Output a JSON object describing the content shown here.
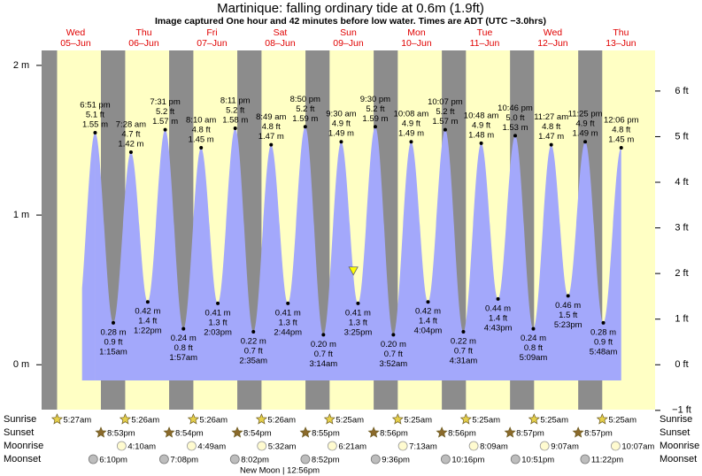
{
  "chart_data": {
    "type": "tide",
    "title": "Martinique: falling  ordinary tide at 0.6m (1.9ft)",
    "subtitle": "Image captured One hour and 42 minutes before low water. Times are ADT (UTC −3.0hrs)",
    "current_height": 0.6,
    "ylim": [
      -0.3,
      2.1
    ],
    "yticks": [
      {
        "value": 0,
        "label": "0 m"
      },
      {
        "value": 1,
        "label": "1 m"
      },
      {
        "value": 2,
        "label": "2 m"
      }
    ],
    "y2lim": [
      -0.984,
      6.89
    ],
    "y2ticks": [
      {
        "value": -1,
        "label": "−1 ft"
      },
      {
        "value": 0,
        "label": "0 ft"
      },
      {
        "value": 1,
        "label": "1 ft"
      },
      {
        "value": 2,
        "label": "2 ft"
      },
      {
        "value": 3,
        "label": "3 ft"
      },
      {
        "value": 4,
        "label": "4 ft"
      },
      {
        "value": 5,
        "label": "5 ft"
      },
      {
        "value": 6,
        "label": "6 ft"
      }
    ],
    "row_labels": [
      "Sunrise",
      "Sunset",
      "Moonrise",
      "Moonset"
    ],
    "moon_phase": "New Moon | 12:56pm",
    "colors": {
      "night": "#8c8c8c",
      "day": "#ffffc4",
      "water": "#a3a8fb"
    },
    "days": [
      {
        "weekday": "Wed",
        "date": "05–Jun",
        "sunrise": "5:27am",
        "sunset": "8:53pm",
        "moonrise": null,
        "moonset": "6:10pm",
        "tides": [
          {
            "time": "6:51 pm",
            "height": 1.55,
            "height_label": "1.55 m",
            "height_ft": "5.1 ft"
          }
        ]
      },
      {
        "weekday": "Thu",
        "date": "06–Jun",
        "sunrise": "5:26am",
        "sunset": "8:54pm",
        "moonrise": "4:10am",
        "moonset": "7:08pm",
        "tides": [
          {
            "time": "1:15am",
            "height": 0.28,
            "height_label": "0.28 m",
            "height_ft": "0.9 ft"
          },
          {
            "time": "7:28 am",
            "height": 1.42,
            "height_label": "1.42 m",
            "height_ft": "4.7 ft"
          },
          {
            "time": "1:22pm",
            "height": 0.42,
            "height_label": "0.42 m",
            "height_ft": "1.4 ft"
          },
          {
            "time": "7:31 pm",
            "height": 1.57,
            "height_label": "1.57 m",
            "height_ft": "5.2 ft"
          }
        ]
      },
      {
        "weekday": "Fri",
        "date": "07–Jun",
        "sunrise": "5:26am",
        "sunset": "8:54pm",
        "moonrise": "4:49am",
        "moonset": "8:02pm",
        "tides": [
          {
            "time": "1:57am",
            "height": 0.24,
            "height_label": "0.24 m",
            "height_ft": "0.8 ft"
          },
          {
            "time": "8:10 am",
            "height": 1.45,
            "height_label": "1.45 m",
            "height_ft": "4.8 ft"
          },
          {
            "time": "2:03pm",
            "height": 0.41,
            "height_label": "0.41 m",
            "height_ft": "1.3 ft"
          },
          {
            "time": "8:11 pm",
            "height": 1.58,
            "height_label": "1.58 m",
            "height_ft": "5.2 ft"
          }
        ]
      },
      {
        "weekday": "Sat",
        "date": "08–Jun",
        "sunrise": "5:26am",
        "sunset": "8:55pm",
        "moonrise": "5:32am",
        "moonset": "8:52pm",
        "tides": [
          {
            "time": "2:35am",
            "height": 0.22,
            "height_label": "0.22 m",
            "height_ft": "0.7 ft"
          },
          {
            "time": "8:49 am",
            "height": 1.47,
            "height_label": "1.47 m",
            "height_ft": "4.8 ft"
          },
          {
            "time": "2:44pm",
            "height": 0.41,
            "height_label": "0.41 m",
            "height_ft": "1.3 ft"
          },
          {
            "time": "8:50 pm",
            "height": 1.59,
            "height_label": "1.59 m",
            "height_ft": "5.2 ft"
          }
        ]
      },
      {
        "weekday": "Sun",
        "date": "09–Jun",
        "sunrise": "5:25am",
        "sunset": "8:56pm",
        "moonrise": "6:21am",
        "moonset": "9:36pm",
        "tides": [
          {
            "time": "3:14am",
            "height": 0.2,
            "height_label": "0.20 m",
            "height_ft": "0.7 ft"
          },
          {
            "time": "9:30 am",
            "height": 1.49,
            "height_label": "1.49 m",
            "height_ft": "4.9 ft"
          },
          {
            "time": "3:25pm",
            "height": 0.41,
            "height_label": "0.41 m",
            "height_ft": "1.3 ft"
          },
          {
            "time": "9:30 pm",
            "height": 1.59,
            "height_label": "1.59 m",
            "height_ft": "5.2 ft"
          }
        ]
      },
      {
        "weekday": "Mon",
        "date": "10–Jun",
        "sunrise": "5:25am",
        "sunset": "8:56pm",
        "moonrise": "7:13am",
        "moonset": "10:16pm",
        "tides": [
          {
            "time": "3:52am",
            "height": 0.2,
            "height_label": "0.20 m",
            "height_ft": "0.7 ft"
          },
          {
            "time": "10:08 am",
            "height": 1.49,
            "height_label": "1.49 m",
            "height_ft": "4.9 ft"
          },
          {
            "time": "4:04pm",
            "height": 0.42,
            "height_label": "0.42 m",
            "height_ft": "1.4 ft"
          },
          {
            "time": "10:07 pm",
            "height": 1.57,
            "height_label": "1.57 m",
            "height_ft": "5.2 ft"
          }
        ]
      },
      {
        "weekday": "Tue",
        "date": "11–Jun",
        "sunrise": "5:25am",
        "sunset": "8:57pm",
        "moonrise": "8:09am",
        "moonset": "10:51pm",
        "tides": [
          {
            "time": "4:31am",
            "height": 0.22,
            "height_label": "0.22 m",
            "height_ft": "0.7 ft"
          },
          {
            "time": "10:48 am",
            "height": 1.48,
            "height_label": "1.48 m",
            "height_ft": "4.9 ft"
          },
          {
            "time": "4:43pm",
            "height": 0.44,
            "height_label": "0.44 m",
            "height_ft": "1.4 ft"
          },
          {
            "time": "10:46 pm",
            "height": 1.53,
            "height_label": "1.53 m",
            "height_ft": "5.0 ft"
          }
        ]
      },
      {
        "weekday": "Wed",
        "date": "12–Jun",
        "sunrise": "5:25am",
        "sunset": "8:57pm",
        "moonrise": "9:07am",
        "moonset": "11:22pm",
        "tides": [
          {
            "time": "5:09am",
            "height": 0.24,
            "height_label": "0.24 m",
            "height_ft": "0.8 ft"
          },
          {
            "time": "11:27 am",
            "height": 1.47,
            "height_label": "1.47 m",
            "height_ft": "4.8 ft"
          },
          {
            "time": "5:23pm",
            "height": 0.46,
            "height_label": "0.46 m",
            "height_ft": "1.5 ft"
          },
          {
            "time": "11:25 pm",
            "height": 1.49,
            "height_label": "1.49 m",
            "height_ft": "4.9 ft"
          }
        ]
      },
      {
        "weekday": "Thu",
        "date": "13–Jun",
        "sunrise": "5:25am",
        "sunset": null,
        "moonrise": "10:07am",
        "moonset": null,
        "tides": [
          {
            "time": "5:48am",
            "height": 0.28,
            "height_label": "0.28 m",
            "height_ft": "0.9 ft"
          },
          {
            "time": "12:06 pm",
            "height": 1.45,
            "height_label": "1.45 m",
            "height_ft": "4.8 ft"
          }
        ]
      }
    ]
  }
}
